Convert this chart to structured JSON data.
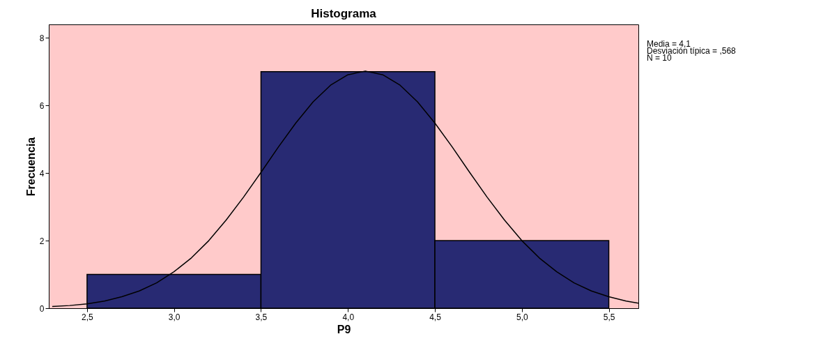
{
  "chart_data": {
    "type": "histogram",
    "title": "Histograma",
    "xlabel": "P9",
    "ylabel": "Frecuencia",
    "bins": [
      2.5,
      3.5,
      4.5,
      5.5
    ],
    "values": [
      1,
      7,
      2
    ],
    "color": "#282a73",
    "series": [
      {
        "type": "line",
        "color": "#000000",
        "x": [
          2.3,
          2.4,
          2.5,
          2.6,
          2.7,
          2.8,
          2.9,
          3.0,
          3.1,
          3.2,
          3.3,
          3.4,
          3.5,
          3.6,
          3.7,
          3.8,
          3.9,
          4.0,
          4.1,
          4.2,
          4.3,
          4.4,
          4.5,
          4.6,
          4.7,
          4.8,
          4.9,
          5.0,
          5.1,
          5.2,
          5.3,
          5.4,
          5.5,
          5.6,
          5.67
        ],
        "values": [
          0.05,
          0.08,
          0.13,
          0.21,
          0.34,
          0.51,
          0.75,
          1.08,
          1.49,
          2.0,
          2.61,
          3.29,
          4.02,
          4.77,
          5.48,
          6.11,
          6.6,
          6.91,
          7.02,
          6.91,
          6.6,
          6.11,
          5.48,
          4.77,
          4.02,
          3.29,
          2.61,
          2.0,
          1.49,
          1.08,
          0.75,
          0.51,
          0.34,
          0.21,
          0.15
        ]
      }
    ],
    "xlim": [
      2.28,
      5.67
    ],
    "ylim": [
      0,
      8.4
    ],
    "xticks": [
      {
        "value": 2.5,
        "label": "2,5"
      },
      {
        "value": 3.0,
        "label": "3,0"
      },
      {
        "value": 3.5,
        "label": "3,5"
      },
      {
        "value": 4.0,
        "label": "4,0"
      },
      {
        "value": 4.5,
        "label": "4,5"
      },
      {
        "value": 5.0,
        "label": "5,0"
      },
      {
        "value": 5.5,
        "label": "5,5"
      }
    ],
    "yticks": [
      0,
      2,
      4,
      6,
      8
    ],
    "grid": false,
    "annotations": [
      "Media = 4,1",
      "Desviación típica = ,568",
      "N = 10"
    ]
  }
}
